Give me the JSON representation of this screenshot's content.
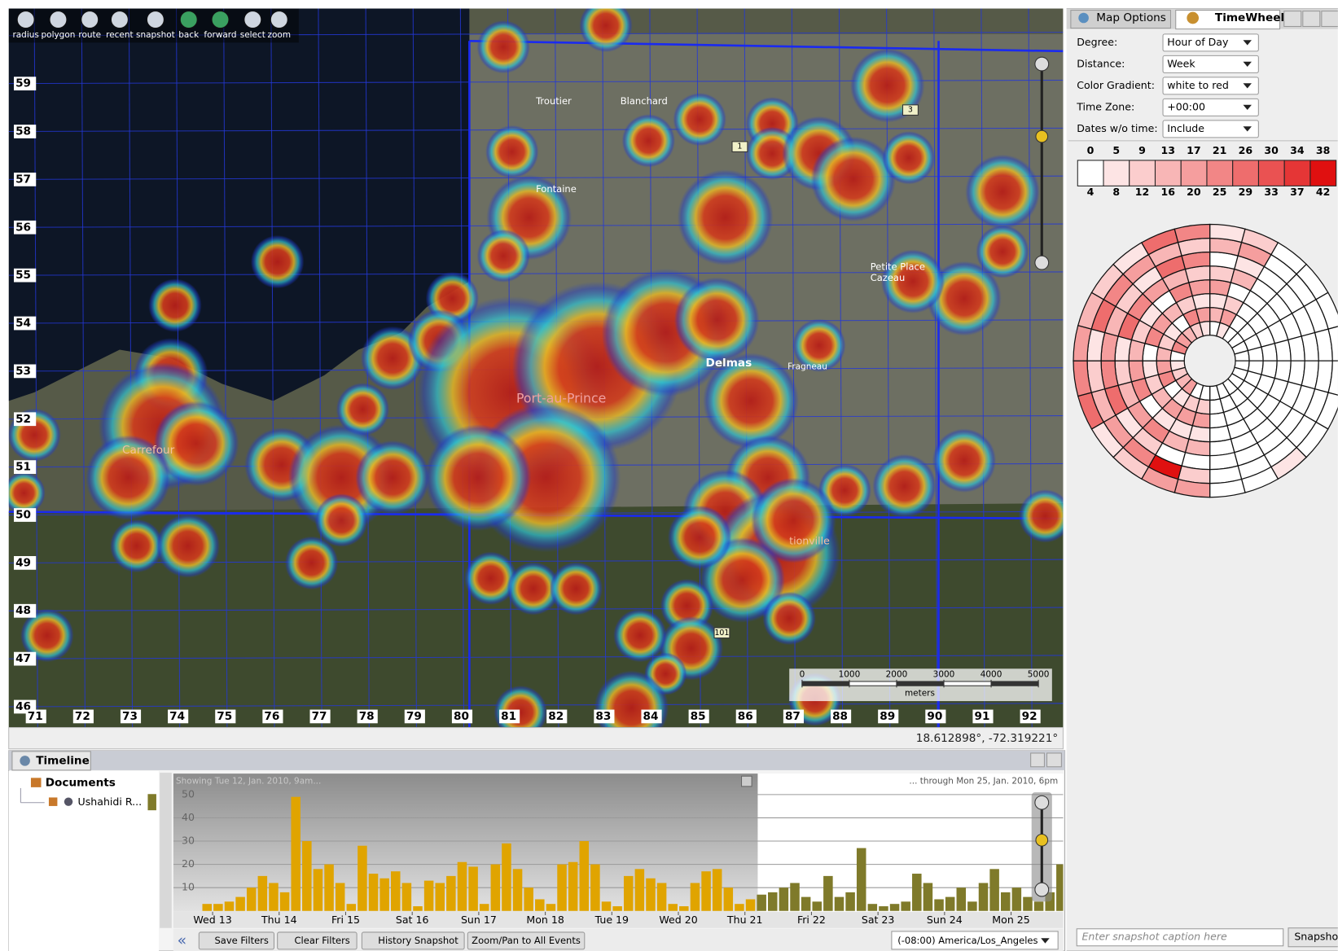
{
  "toolbar": [
    "radius",
    "polygon",
    "route",
    "recent",
    "snapshot",
    "back",
    "forward",
    "select",
    "zoom"
  ],
  "map": {
    "y_grid_labels": [
      59,
      58,
      57,
      56,
      55,
      54,
      53,
      52,
      51,
      50,
      49,
      48,
      47,
      46
    ],
    "x_grid_labels": [
      71,
      72,
      73,
      74,
      75,
      76,
      77,
      78,
      79,
      80,
      81,
      82,
      83,
      84,
      85,
      86,
      87,
      88,
      89,
      90,
      91,
      92
    ],
    "places": [
      "Troutier",
      "Blanchard",
      "Fontaine",
      "Petite Place",
      "Cazeau",
      "Delmas",
      "Fragneau",
      "Port-au-Prince",
      "Carrefour",
      "tionville"
    ],
    "road_markers": [
      "1",
      "3",
      "101"
    ],
    "scale": {
      "ticks": [
        0,
        1000,
        2000,
        3000,
        4000,
        5000
      ],
      "unit": "meters"
    },
    "coordinates": "18.612898°, -72.319221°"
  },
  "side_panel": {
    "tabs": [
      "Map Options",
      "TimeWheel"
    ],
    "fields": [
      {
        "label": "Degree:",
        "value": "Hour of Day"
      },
      {
        "label": "Distance:",
        "value": "Week"
      },
      {
        "label": "Color Gradient:",
        "value": "white to red"
      },
      {
        "label": "Time Zone:",
        "value": "+00:00"
      },
      {
        "label": "Dates w/o time:",
        "value": "Include"
      }
    ],
    "legend": {
      "top": [
        0,
        5,
        9,
        13,
        17,
        21,
        26,
        30,
        34,
        38
      ],
      "bottom": [
        4,
        8,
        12,
        16,
        20,
        25,
        29,
        33,
        37,
        42
      ],
      "colors": [
        "#ffffff",
        "#fde4e4",
        "#fbcdcd",
        "#f8b6b6",
        "#f59e9e",
        "#f28686",
        "#ee6d6d",
        "#ea5252",
        "#e53636",
        "#e01010"
      ]
    },
    "caption_placeholder": "Enter snapshot caption here",
    "snapshot_button": "Snapshot"
  },
  "timeline": {
    "tab": "Timeline",
    "tree": [
      "Documents",
      "Ushahidi R..."
    ],
    "range_start": "Showing Tue 12, Jan. 2010, 9am...",
    "range_end": "... through Mon 25, Jan. 2010, 6pm",
    "buttons": [
      "Save Filters",
      "Clear Filters",
      "History Snapshot",
      "Zoom/Pan to All Events"
    ],
    "timezone": "(-08:00) America/Los_Angeles",
    "chart_data": {
      "type": "bar",
      "categories": [
        null,
        "Wed 13",
        null,
        null,
        null,
        null,
        null,
        "Thu 14",
        null,
        null,
        null,
        null,
        null,
        "Fri 15",
        null,
        null,
        null,
        null,
        null,
        "Sat 16",
        null,
        null,
        null,
        null,
        null,
        "Sun 17",
        null,
        null,
        null,
        null,
        null,
        "Mon 18",
        null,
        null,
        null,
        null,
        null,
        "Tue 19",
        null,
        null,
        null,
        null,
        null,
        "Wed 20",
        null,
        null,
        null,
        null,
        null,
        "Thu 21",
        null,
        null,
        null,
        null,
        null,
        "Fri 22",
        null,
        null,
        null,
        null,
        null,
        "Sat 23",
        null,
        null,
        null,
        null,
        null,
        "Sun 24",
        null,
        null,
        null,
        null,
        null,
        "Mon 25",
        null,
        null,
        null,
        null
      ],
      "values": [
        3,
        3,
        4,
        6,
        10,
        15,
        12,
        8,
        49,
        30,
        18,
        20,
        12,
        3,
        28,
        16,
        14,
        17,
        12,
        2,
        13,
        12,
        15,
        21,
        19,
        3,
        20,
        29,
        18,
        10,
        5,
        3,
        20,
        21,
        30,
        20,
        4,
        2,
        15,
        18,
        14,
        12,
        3,
        2,
        12,
        17,
        18,
        10,
        3,
        5,
        7,
        8,
        10,
        12,
        6,
        4,
        15,
        6,
        8,
        27,
        3,
        2,
        3,
        4,
        16,
        12,
        5,
        6,
        10,
        4,
        12,
        18,
        8,
        10,
        6,
        4,
        8,
        20
      ],
      "colors": [
        "#e0a400",
        "#e0a400",
        "#e0a400",
        "#e0a400",
        "#e0a400",
        "#e0a400",
        "#e0a400",
        "#e0a400",
        "#e0a400",
        "#e0a400",
        "#e0a400",
        "#e0a400",
        "#e0a400",
        "#e0a400",
        "#e0a400",
        "#e0a400",
        "#e0a400",
        "#e0a400",
        "#e0a400",
        "#e0a400",
        "#e0a400",
        "#e0a400",
        "#e0a400",
        "#e0a400",
        "#e0a400",
        "#e0a400",
        "#e0a400",
        "#e0a400",
        "#e0a400",
        "#e0a400",
        "#e0a400",
        "#e0a400",
        "#e0a400",
        "#e0a400",
        "#e0a400",
        "#e0a400",
        "#e0a400",
        "#e0a400",
        "#e0a400",
        "#e0a400",
        "#e0a400",
        "#e0a400",
        "#e0a400",
        "#e0a400",
        "#e0a400",
        "#e0a400",
        "#e0a400",
        "#e0a400",
        "#e0a400",
        "#e0a400",
        "#7f7a2a",
        "#7f7a2a",
        "#7f7a2a",
        "#7f7a2a",
        "#7f7a2a",
        "#7f7a2a",
        "#7f7a2a",
        "#7f7a2a",
        "#7f7a2a",
        "#7f7a2a",
        "#7f7a2a",
        "#7f7a2a",
        "#7f7a2a",
        "#7f7a2a",
        "#7f7a2a",
        "#7f7a2a",
        "#7f7a2a",
        "#7f7a2a",
        "#7f7a2a",
        "#7f7a2a",
        "#7f7a2a",
        "#7f7a2a",
        "#7f7a2a",
        "#7f7a2a",
        "#7f7a2a",
        "#7f7a2a",
        "#7f7a2a",
        "#7f7a2a"
      ],
      "ylim": [
        0,
        59
      ],
      "yticks": [
        10,
        20,
        30,
        40,
        50
      ],
      "grid": true
    }
  }
}
